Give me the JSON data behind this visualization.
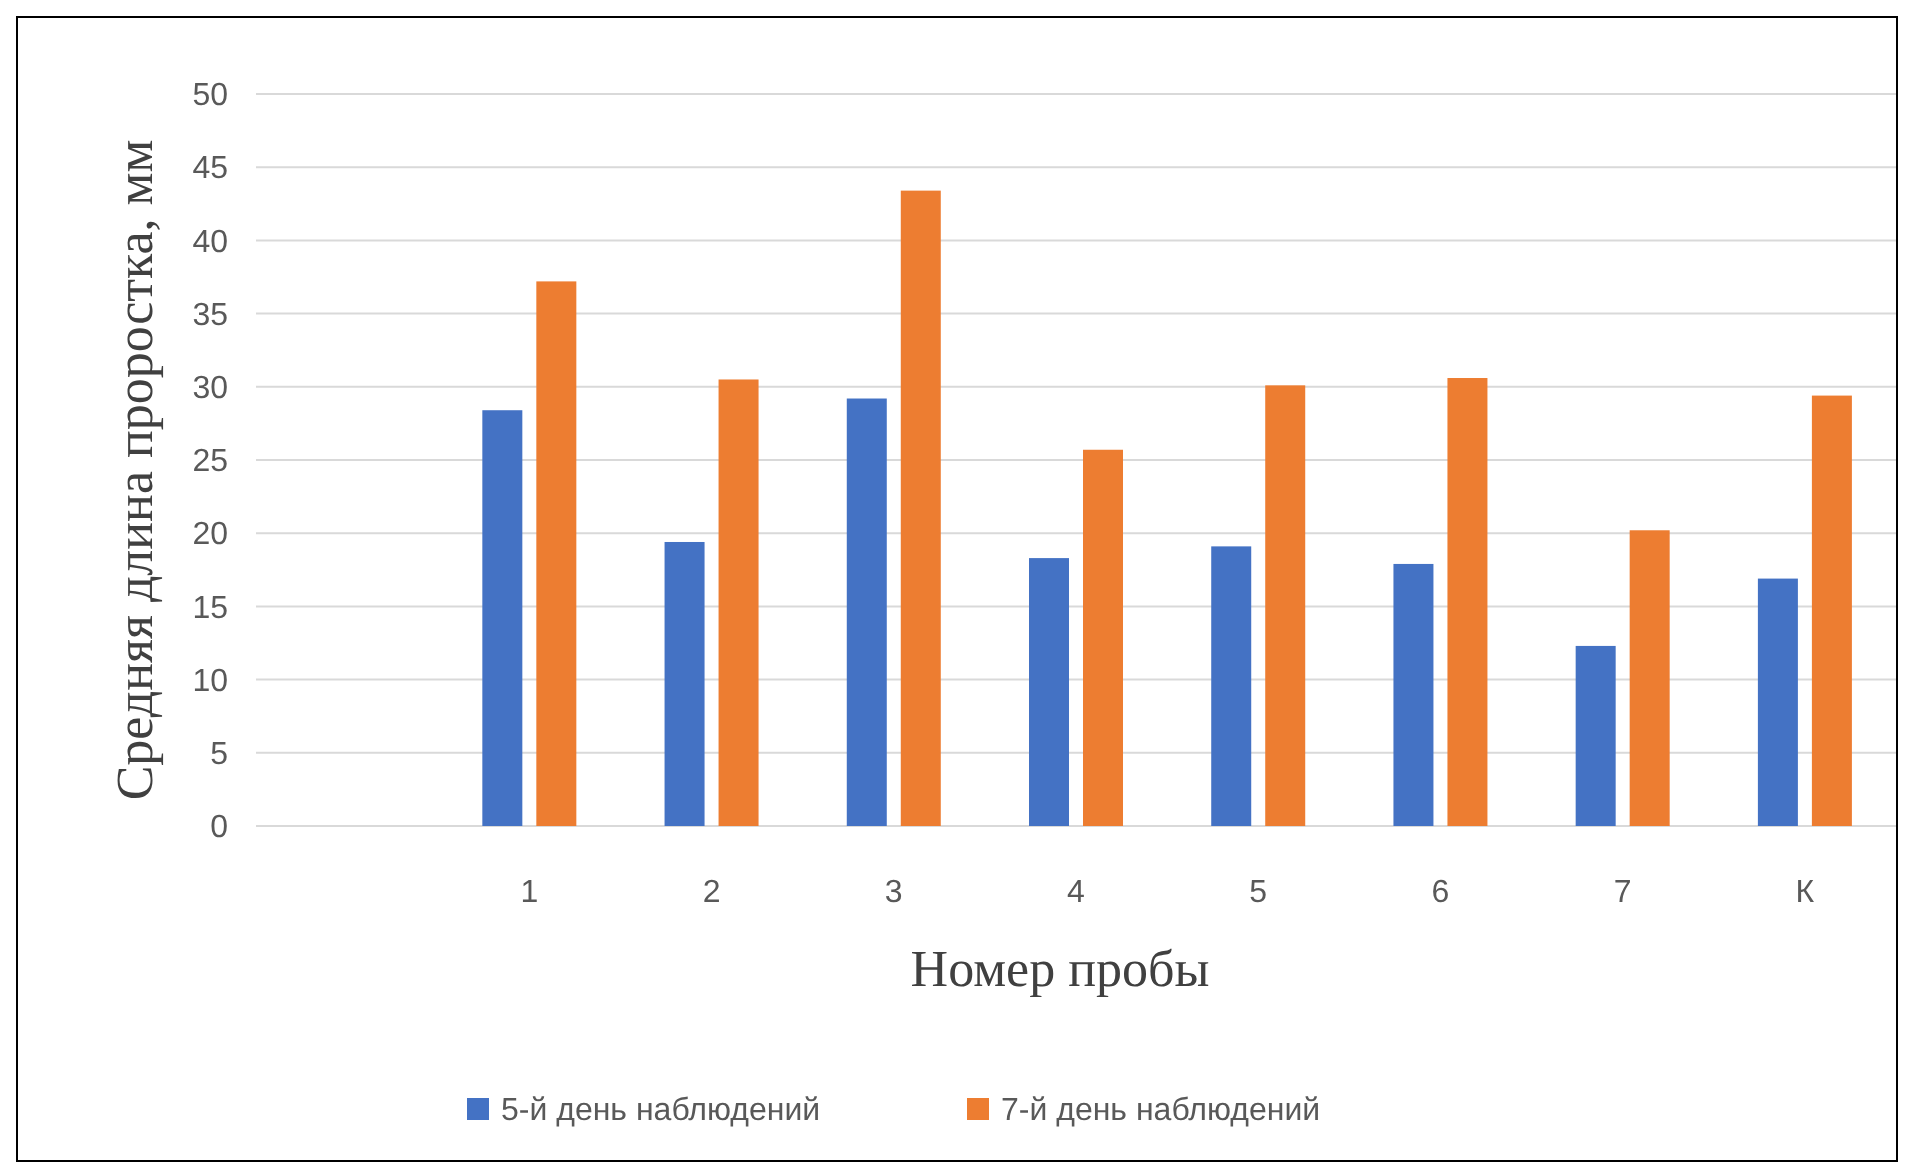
{
  "chart_data": {
    "type": "bar",
    "xlabel": "Номер пробы",
    "ylabel": "Средняя длина проростка, мм",
    "categories": [
      null,
      "1",
      "2",
      "3",
      "4",
      "5",
      "6",
      "7",
      "К"
    ],
    "series": [
      {
        "name": "5-й день наблюдений",
        "color": "#4472c4",
        "values": [
          null,
          28.4,
          19.4,
          29.2,
          18.3,
          19.1,
          17.9,
          12.3,
          16.9
        ]
      },
      {
        "name": "7-й день наблюдений",
        "color": "#ed7d31",
        "values": [
          null,
          37.2,
          30.5,
          43.4,
          25.7,
          30.1,
          30.6,
          20.2,
          29.4
        ]
      }
    ],
    "ylim": [
      0,
      50
    ],
    "yticks": [
      0,
      5,
      10,
      15,
      20,
      25,
      30,
      35,
      40,
      45,
      50
    ],
    "grid": "y",
    "legend": "bottom"
  }
}
